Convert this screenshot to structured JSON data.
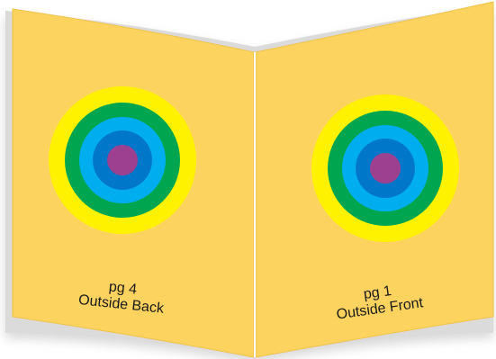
{
  "panels": [
    {
      "id": "back",
      "page_label": "pg 4",
      "side_label": "Outside Back",
      "colors": {
        "face": "#fdd35f",
        "ring_outer": "#fef200",
        "ring_2": "#00a550",
        "ring_3": "#00aeef",
        "ring_4": "#0077c8",
        "center": "#9e4090"
      }
    },
    {
      "id": "front",
      "page_label": "pg 1",
      "side_label": "Outside Front",
      "colors": {
        "face": "#fdd35f",
        "ring_outer": "#fef200",
        "ring_2": "#00a550",
        "ring_3": "#00aeef",
        "ring_4": "#0077c8",
        "center": "#9e4090"
      }
    }
  ],
  "colors": {
    "fold_line": "#ffffff",
    "face_edge": "#f0c24a"
  }
}
